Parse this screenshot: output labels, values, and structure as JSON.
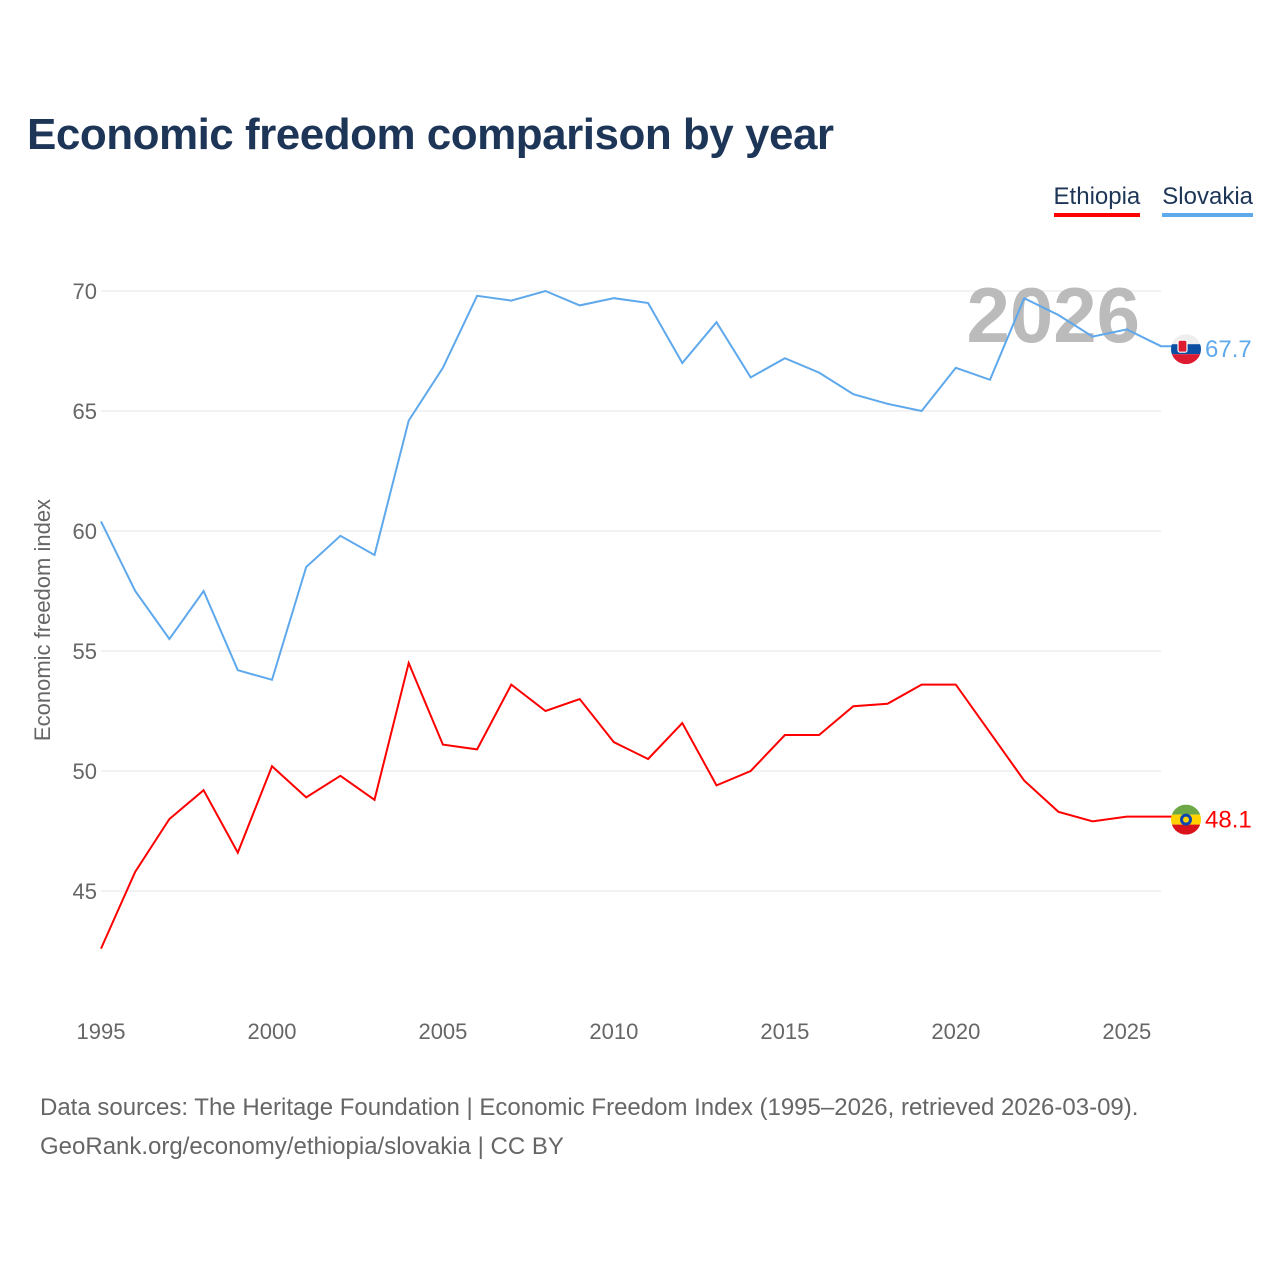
{
  "chart_data": {
    "type": "line",
    "title": "Economic freedom comparison by year",
    "xlabel": "",
    "ylabel": "Economic freedom index",
    "xlim": [
      1995,
      2026
    ],
    "ylim": [
      41,
      71.5
    ],
    "grid": true,
    "legend_placement": "top-right",
    "watermark_year": "2026",
    "x_ticks": [
      1995,
      2000,
      2005,
      2010,
      2015,
      2020,
      2025
    ],
    "y_ticks": [
      45,
      50,
      55,
      60,
      65,
      70
    ],
    "x": [
      1995,
      1996,
      1997,
      1998,
      1999,
      2000,
      2001,
      2002,
      2003,
      2004,
      2005,
      2006,
      2007,
      2008,
      2009,
      2010,
      2011,
      2012,
      2013,
      2014,
      2015,
      2016,
      2017,
      2018,
      2019,
      2020,
      2021,
      2022,
      2023,
      2024,
      2025,
      2026
    ],
    "series": [
      {
        "name": "Ethiopia",
        "color": "#ff0000",
        "end_label": "48.1",
        "values": [
          42.6,
          45.8,
          48.0,
          49.2,
          46.6,
          50.2,
          48.9,
          49.8,
          48.8,
          54.5,
          51.1,
          50.9,
          53.6,
          52.5,
          53.0,
          51.2,
          50.5,
          52.0,
          49.4,
          50.0,
          51.5,
          51.5,
          52.7,
          52.8,
          53.6,
          53.6,
          51.6,
          49.6,
          48.3,
          47.9,
          48.1,
          48.1
        ]
      },
      {
        "name": "Slovakia",
        "color": "#5ea8ec",
        "end_label": "67.7",
        "values": [
          60.4,
          57.5,
          55.5,
          57.5,
          54.2,
          53.8,
          58.5,
          59.8,
          59.0,
          64.6,
          66.8,
          69.8,
          69.6,
          70.0,
          69.4,
          69.7,
          69.5,
          67.0,
          68.7,
          66.4,
          67.2,
          66.6,
          65.7,
          65.3,
          65.0,
          66.8,
          66.3,
          69.7,
          69.0,
          68.1,
          68.4,
          67.7
        ]
      }
    ]
  },
  "source": {
    "line1": "Data sources: The Heritage Foundation | Economic Freedom Index (1995–2026, retrieved 2026-03-09).",
    "line2": "GeoRank.org/economy/ethiopia/slovakia | CC BY"
  }
}
